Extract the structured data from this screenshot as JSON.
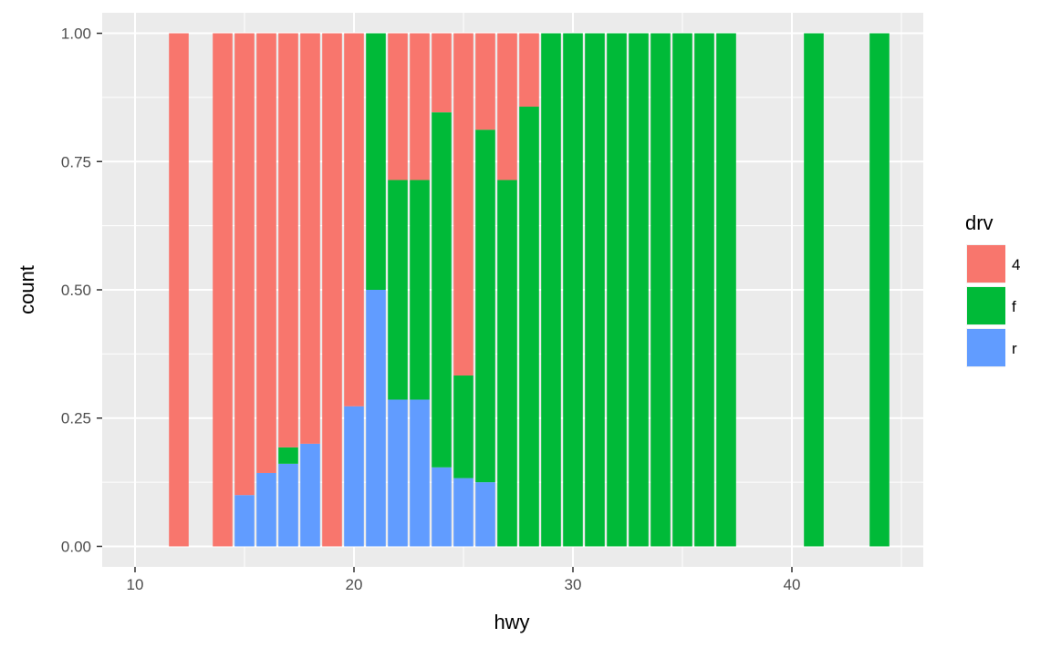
{
  "chart_data": {
    "type": "bar",
    "stacked": "fill",
    "xlabel": "hwy",
    "ylabel": "count",
    "xlim": [
      8.5,
      46
    ],
    "ylim": [
      -0.04,
      1.04
    ],
    "x_ticks": [
      10,
      20,
      30,
      40
    ],
    "y_ticks": [
      0,
      0.25,
      0.5,
      0.75,
      1
    ],
    "y_tick_labels": [
      "0.00",
      "0.25",
      "0.50",
      "0.75",
      "1.00"
    ],
    "bar_width": 0.9,
    "grid": true,
    "legend": {
      "title": "drv",
      "position": "right",
      "entries": [
        {
          "label": "4",
          "color": "#F8766D"
        },
        {
          "label": "f",
          "color": "#00BA38"
        },
        {
          "label": "r",
          "color": "#619CFF"
        }
      ]
    },
    "series": [
      {
        "key": "4",
        "color": "#F8766D"
      },
      {
        "key": "f",
        "color": "#00BA38"
      },
      {
        "key": "r",
        "color": "#619CFF"
      }
    ],
    "bars": [
      {
        "x": 12,
        "r": 0,
        "f": 0,
        "4": 1
      },
      {
        "x": 14,
        "r": 0,
        "f": 0,
        "4": 1
      },
      {
        "x": 15,
        "r": 0.1,
        "f": 0,
        "4": 0.9
      },
      {
        "x": 16,
        "r": 0.143,
        "f": 0,
        "4": 0.857
      },
      {
        "x": 17,
        "r": 0.161,
        "f": 0.032,
        "4": 0.807
      },
      {
        "x": 18,
        "r": 0.2,
        "f": 0,
        "4": 0.8
      },
      {
        "x": 19,
        "r": 0,
        "f": 0,
        "4": 1
      },
      {
        "x": 20,
        "r": 0.273,
        "f": 0,
        "4": 0.727
      },
      {
        "x": 21,
        "r": 0.5,
        "f": 0.5,
        "4": 0
      },
      {
        "x": 22,
        "r": 0.286,
        "f": 0.428,
        "4": 0.286
      },
      {
        "x": 23,
        "r": 0.286,
        "f": 0.428,
        "4": 0.286
      },
      {
        "x": 24,
        "r": 0.154,
        "f": 0.692,
        "4": 0.154
      },
      {
        "x": 25,
        "r": 0.133,
        "f": 0.2,
        "4": 0.667
      },
      {
        "x": 26,
        "r": 0.125,
        "f": 0.687,
        "4": 0.188
      },
      {
        "x": 27,
        "r": 0,
        "f": 0.714,
        "4": 0.286
      },
      {
        "x": 28,
        "r": 0,
        "f": 0.857,
        "4": 0.143
      },
      {
        "x": 29,
        "r": 0,
        "f": 1,
        "4": 0
      },
      {
        "x": 30,
        "r": 0,
        "f": 1,
        "4": 0
      },
      {
        "x": 31,
        "r": 0,
        "f": 1,
        "4": 0
      },
      {
        "x": 32,
        "r": 0,
        "f": 1,
        "4": 0
      },
      {
        "x": 33,
        "r": 0,
        "f": 1,
        "4": 0
      },
      {
        "x": 34,
        "r": 0,
        "f": 1,
        "4": 0
      },
      {
        "x": 35,
        "r": 0,
        "f": 1,
        "4": 0
      },
      {
        "x": 36,
        "r": 0,
        "f": 1,
        "4": 0
      },
      {
        "x": 37,
        "r": 0,
        "f": 1,
        "4": 0
      },
      {
        "x": 41,
        "r": 0,
        "f": 1,
        "4": 0
      },
      {
        "x": 44,
        "r": 0,
        "f": 1,
        "4": 0
      }
    ]
  }
}
